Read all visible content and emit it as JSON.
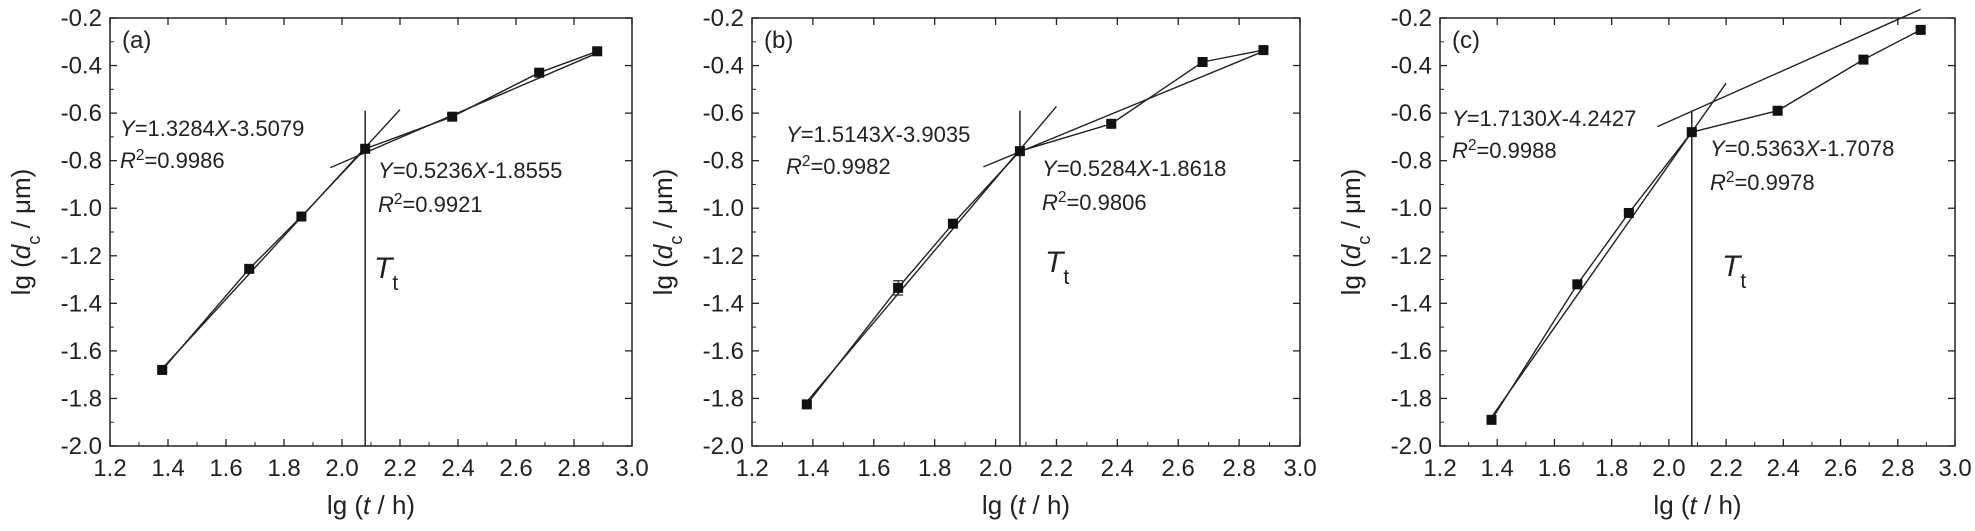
{
  "chart_data": [
    {
      "type": "line",
      "panel_label": "(a)",
      "xlabel": "lg (t / h)",
      "ylabel": "lg (d_c / μm)",
      "xlim": [
        1.2,
        3.0
      ],
      "ylim": [
        -2.0,
        -0.2
      ],
      "x_ticks": [
        "1.2",
        "1.4",
        "1.6",
        "1.8",
        "2.0",
        "2.2",
        "2.4",
        "2.6",
        "2.8",
        "3.0"
      ],
      "y_ticks": [
        "-0.2",
        "-0.4",
        "-0.6",
        "-0.8",
        "-1.0",
        "-1.2",
        "-1.4",
        "-1.6",
        "-1.8",
        "-2.0"
      ],
      "series": [
        {
          "x": [
            1.38,
            1.68,
            1.86,
            2.08,
            2.38,
            2.68,
            2.88
          ],
          "y": [
            -1.68,
            -1.255,
            -1.035,
            -0.75,
            -0.615,
            -0.43,
            -0.34
          ],
          "errors": [
            0.01,
            0.015,
            0.01,
            0.01,
            0.01,
            0.01,
            0.01
          ]
        }
      ],
      "fits": [
        {
          "slope": 1.3284,
          "intercept": -3.5079,
          "x_range": [
            1.38,
            2.2
          ],
          "equation": "Y=1.3284X-3.5079",
          "r2": "R2=0.9986"
        },
        {
          "slope": 0.5236,
          "intercept": -1.8555,
          "x_range": [
            1.96,
            2.88
          ],
          "equation": "Y=0.5236X-1.8555",
          "r2": "R2=0.9921"
        }
      ],
      "transition": {
        "x": 2.08,
        "label": "Tt"
      }
    },
    {
      "type": "line",
      "panel_label": "(b)",
      "xlabel": "lg (t / h)",
      "ylabel": "lg (d_c / μm)",
      "xlim": [
        1.2,
        3.0
      ],
      "ylim": [
        -2.0,
        -0.2
      ],
      "x_ticks": [
        "1.2",
        "1.4",
        "1.6",
        "1.8",
        "2.0",
        "2.2",
        "2.4",
        "2.6",
        "2.8",
        "3.0"
      ],
      "y_ticks": [
        "-0.2",
        "-0.4",
        "-0.6",
        "-0.8",
        "-1.0",
        "-1.2",
        "-1.4",
        "-1.6",
        "-1.8",
        "-2.0"
      ],
      "series": [
        {
          "x": [
            1.38,
            1.68,
            1.86,
            2.08,
            2.38,
            2.68,
            2.88
          ],
          "y": [
            -1.825,
            -1.335,
            -1.065,
            -0.76,
            -0.645,
            -0.385,
            -0.335
          ],
          "errors": [
            0.01,
            0.03,
            0.01,
            0.01,
            0.01,
            0.01,
            0.01
          ]
        }
      ],
      "fits": [
        {
          "slope": 1.5143,
          "intercept": -3.9035,
          "x_range": [
            1.38,
            2.2
          ],
          "equation": "Y=1.5143X-3.9035",
          "r2": "R2=0.9982"
        },
        {
          "slope": 0.5284,
          "intercept": -1.8618,
          "x_range": [
            1.96,
            2.88
          ],
          "equation": "Y=0.5284X-1.8618",
          "r2": "R2=0.9806"
        }
      ],
      "transition": {
        "x": 2.08,
        "label": "Tt"
      }
    },
    {
      "type": "line",
      "panel_label": "(c)",
      "xlabel": "lg (t / h)",
      "ylabel": "lg (d_c / μm)",
      "xlim": [
        1.2,
        3.0
      ],
      "ylim": [
        -2.0,
        -0.2
      ],
      "x_ticks": [
        "1.2",
        "1.4",
        "1.6",
        "1.8",
        "2.0",
        "2.2",
        "2.4",
        "2.6",
        "2.8",
        "3.0"
      ],
      "y_ticks": [
        "-0.2",
        "-0.4",
        "-0.6",
        "-0.8",
        "-1.0",
        "-1.2",
        "-1.4",
        "-1.6",
        "-1.8",
        "-2.0"
      ],
      "series": [
        {
          "x": [
            1.38,
            1.68,
            1.86,
            2.08,
            2.38,
            2.68,
            2.88
          ],
          "y": [
            -1.89,
            -1.32,
            -1.02,
            -0.68,
            -0.59,
            -0.375,
            -0.25
          ],
          "errors": [
            0.01,
            0.01,
            0.01,
            0.01,
            0.01,
            0.01,
            0.01
          ]
        }
      ],
      "fits": [
        {
          "slope": 1.713,
          "intercept": -4.2427,
          "x_range": [
            1.38,
            2.2
          ],
          "equation": "Y=1.7130X-4.2427",
          "r2": "R2=0.9988"
        },
        {
          "slope": 0.5363,
          "intercept": -1.7078,
          "x_range": [
            1.96,
            2.88
          ],
          "equation": "Y=0.5363X-1.7078",
          "r2": "R2=0.9978"
        }
      ],
      "transition": {
        "x": 2.08,
        "label": "Tt"
      }
    }
  ]
}
